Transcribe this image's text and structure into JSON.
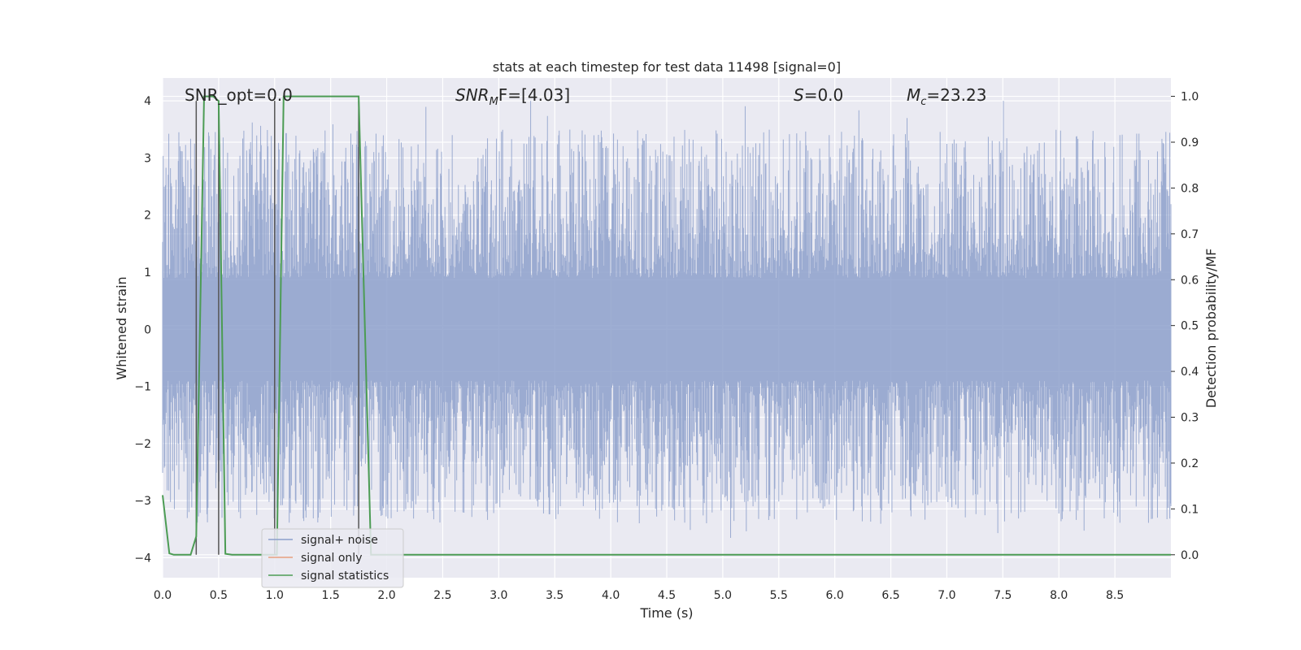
{
  "chart_data": {
    "type": "line",
    "title": "stats at each timestep for test data 11498 [signal=0]",
    "xlabel": "Time (s)",
    "ylabel": "Whitened strain",
    "ylabel_right": "Detection probability/MF",
    "xlim": [
      0.0,
      9.0
    ],
    "ylim": [
      -4.35,
      4.4
    ],
    "ylim_right": [
      -0.05,
      1.04
    ],
    "x_ticks": [
      "0.0",
      "0.5",
      "1.0",
      "1.5",
      "2.0",
      "2.5",
      "3.0",
      "3.5",
      "4.0",
      "4.5",
      "5.0",
      "5.5",
      "6.0",
      "6.5",
      "7.0",
      "7.5",
      "8.0",
      "8.5"
    ],
    "y_ticks": [
      "−4",
      "−3",
      "−2",
      "−1",
      "0",
      "1",
      "2",
      "3",
      "4"
    ],
    "y_ticks_right": [
      "0.0",
      "0.1",
      "0.2",
      "0.3",
      "0.4",
      "0.5",
      "0.6",
      "0.7",
      "0.8",
      "0.9",
      "1.0"
    ],
    "grid": true,
    "legend_position": "lower-left",
    "annotations": {
      "snr_opt": "SNR_opt=0.0",
      "snr_mf_base": "SNR",
      "snr_mf_sub": "M",
      "snr_mf_rest": "F=[4.03]",
      "s_sym": "S",
      "s_val": "=0.0",
      "mc_sym": "M",
      "mc_sub": "c",
      "mc_val": "=23.23"
    },
    "vlines_x": [
      0.3,
      0.5,
      1.0,
      1.75
    ],
    "series": [
      {
        "name": "signal+ noise",
        "color": "#8da0cb",
        "description_values": "whitened noise strain, roughly within -3.8 to 4.0",
        "envelope": {
          "typical_peak": 2.6,
          "max": 4.0,
          "min": -3.8
        }
      },
      {
        "name": "signal only",
        "color": "#e8a07f",
        "values": []
      },
      {
        "name": "signal statistics",
        "color": "#4c9c54",
        "axis": "right",
        "x": [
          0.0,
          0.06,
          0.1,
          0.25,
          0.3,
          0.37,
          0.45,
          0.5,
          0.56,
          0.62,
          0.99,
          1.02,
          1.08,
          1.15,
          1.7,
          1.75,
          1.86,
          1.93,
          2.0,
          3.0,
          5.0,
          7.0,
          9.0
        ],
        "values": [
          0.13,
          0.003,
          0.0,
          0.0,
          0.04,
          1.0,
          1.0,
          0.99,
          0.002,
          0.0,
          0.0,
          0.0,
          1.0,
          1.0,
          1.0,
          1.0,
          0.0,
          0.0,
          0.0,
          0.0,
          0.0,
          0.0,
          0.0
        ]
      }
    ]
  }
}
